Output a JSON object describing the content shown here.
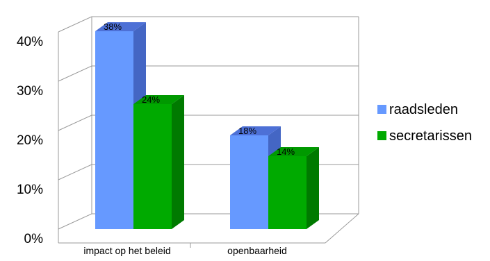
{
  "chart_data": {
    "type": "bar",
    "categories": [
      "impact op het beleid",
      "openbaarheid"
    ],
    "series": [
      {
        "name": "raadsleden",
        "values": [
          38,
          18
        ],
        "data_labels": [
          "38%",
          "18%"
        ]
      },
      {
        "name": "secretarissen",
        "values": [
          24,
          14
        ],
        "data_labels": [
          "24%",
          "14%"
        ]
      }
    ],
    "y_ticks": [
      "0%",
      "10%",
      "20%",
      "30%",
      "40%"
    ],
    "ylim": [
      0,
      40
    ],
    "grid": true,
    "legend_position": "right",
    "colors": {
      "raadsleden": {
        "front": "#6699ff",
        "top": "#4d70d6",
        "side": "#4466c4"
      },
      "secretarissen": {
        "front": "#00aa00",
        "top": "#009900",
        "side": "#007a00"
      },
      "grid": "#999999"
    }
  }
}
